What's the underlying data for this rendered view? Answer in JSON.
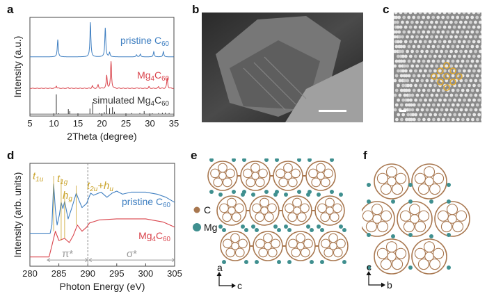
{
  "panels": {
    "a": "a",
    "b": "b",
    "c": "c",
    "d": "d",
    "e": "e",
    "f": "f"
  },
  "chart_data": [
    {
      "type": "line",
      "panel": "a",
      "xlabel": "2Theta (degree)",
      "ylabel": "Intensity (a.u.)",
      "xlim": [
        5,
        35
      ],
      "xticks": [
        5,
        10,
        15,
        20,
        25,
        30,
        35
      ],
      "series": [
        {
          "name": "pristine C",
          "sub": "60",
          "color": "#3f7fc1",
          "peaks": [
            [
              10.8,
              50
            ],
            [
              17.6,
              100
            ],
            [
              20.7,
              84
            ],
            [
              21.6,
              12
            ],
            [
              27.2,
              6
            ],
            [
              28.0,
              8
            ],
            [
              30.8,
              15
            ],
            [
              32.8,
              15
            ]
          ]
        },
        {
          "name": "Mg",
          "sub4": "4",
          "name2": "C",
          "sub": "60",
          "color": "#d9434b",
          "peaks": [
            [
              10.5,
              10
            ],
            [
              13.0,
              3
            ],
            [
              18.0,
              10
            ],
            [
              19.2,
              13
            ],
            [
              21.0,
              48
            ],
            [
              21.9,
              100
            ],
            [
              27.5,
              3
            ],
            [
              29.8,
              6
            ],
            [
              31.8,
              6
            ],
            [
              33.6,
              40
            ]
          ]
        },
        {
          "name": "simulated Mg",
          "sub4": "4",
          "name2": "C",
          "sub": "60",
          "color": "#333333",
          "sticks": [
            [
              10.5,
              100
            ],
            [
              11.0,
              4
            ],
            [
              13.0,
              25
            ],
            [
              13.3,
              15
            ],
            [
              17.5,
              28
            ],
            [
              18.1,
              60
            ],
            [
              19.5,
              5
            ],
            [
              20.5,
              10
            ],
            [
              21.0,
              48
            ],
            [
              21.6,
              30
            ],
            [
              22.2,
              35
            ],
            [
              22.6,
              12
            ],
            [
              26.2,
              5
            ],
            [
              27.9,
              5
            ],
            [
              28.8,
              15
            ],
            [
              30.5,
              4
            ],
            [
              31.8,
              5
            ],
            [
              32.6,
              6
            ],
            [
              33.2,
              7
            ],
            [
              34.0,
              5
            ]
          ]
        }
      ]
    },
    {
      "type": "line",
      "panel": "d",
      "xlabel": "Photon Energy (eV)",
      "ylabel": "Intensity (arb. units)",
      "xlim": [
        280,
        305
      ],
      "xticks": [
        280,
        285,
        290,
        295,
        300,
        305
      ],
      "dashed_line_x": 290,
      "series": [
        {
          "name": "pristine C",
          "sub": "60",
          "color": "#3f7fc1",
          "points": [
            [
              280,
              0.32
            ],
            [
              283.5,
              0.32
            ],
            [
              283.8,
              0.4
            ],
            [
              284.1,
              0.8
            ],
            [
              284.4,
              0.55
            ],
            [
              284.7,
              0.4
            ],
            [
              285.1,
              0.5
            ],
            [
              285.4,
              0.62
            ],
            [
              285.7,
              0.56
            ],
            [
              286.0,
              0.63
            ],
            [
              286.6,
              0.46
            ],
            [
              287.2,
              0.56
            ],
            [
              288.0,
              0.71
            ],
            [
              288.4,
              0.65
            ],
            [
              289.0,
              0.57
            ],
            [
              289.8,
              0.61
            ],
            [
              290.2,
              0.67
            ],
            [
              290.5,
              0.71
            ],
            [
              291.0,
              0.69
            ],
            [
              292.3,
              0.72
            ],
            [
              293.3,
              0.67
            ],
            [
              294.2,
              0.71
            ],
            [
              295.0,
              0.73
            ],
            [
              296.0,
              0.7
            ],
            [
              297.5,
              0.72
            ],
            [
              300,
              0.72
            ],
            [
              302,
              0.7
            ],
            [
              303.5,
              0.67
            ],
            [
              305,
              0.62
            ]
          ]
        },
        {
          "name": "Mg",
          "sub4": "4",
          "name2": "C",
          "sub": "60",
          "color": "#d9434b",
          "points": [
            [
              280,
              0.09
            ],
            [
              283.3,
              0.09
            ],
            [
              283.8,
              0.2
            ],
            [
              284.4,
              0.34
            ],
            [
              285.0,
              0.25
            ],
            [
              286.0,
              0.27
            ],
            [
              286.8,
              0.23
            ],
            [
              287.5,
              0.3
            ],
            [
              288.2,
              0.4
            ],
            [
              289.0,
              0.34
            ],
            [
              289.8,
              0.38
            ],
            [
              290.3,
              0.42
            ],
            [
              292,
              0.45
            ],
            [
              295,
              0.46
            ],
            [
              300,
              0.46
            ],
            [
              303,
              0.43
            ],
            [
              305,
              0.38
            ]
          ]
        }
      ],
      "annotations": [
        {
          "text": "t",
          "sub": "1u",
          "x": 284.1,
          "color": "#c9a227"
        },
        {
          "text": "t",
          "sub": "1g",
          "x": 285.4,
          "color": "#c9a227"
        },
        {
          "text": "h",
          "sub": "g",
          "x": 286.0,
          "color": "#c9a227"
        },
        {
          "text": "t",
          "sub": "2u",
          "extra": "+h",
          "sub2": "u",
          "x": 288.0,
          "color": "#c9a227"
        }
      ],
      "regions": [
        {
          "label": "π*",
          "from": 283,
          "to": 290
        },
        {
          "label": "σ*",
          "from": 290.2,
          "to": 305
        }
      ]
    }
  ],
  "legend_e": {
    "c": "C",
    "mg": "Mg",
    "c_color": "#a8774f",
    "mg_color": "#3f8f8f"
  },
  "axes_e": {
    "up": "a",
    "right": "c"
  },
  "axes_f": {
    "up": "c",
    "right": "b"
  },
  "highlight_color": "#e0a82e"
}
